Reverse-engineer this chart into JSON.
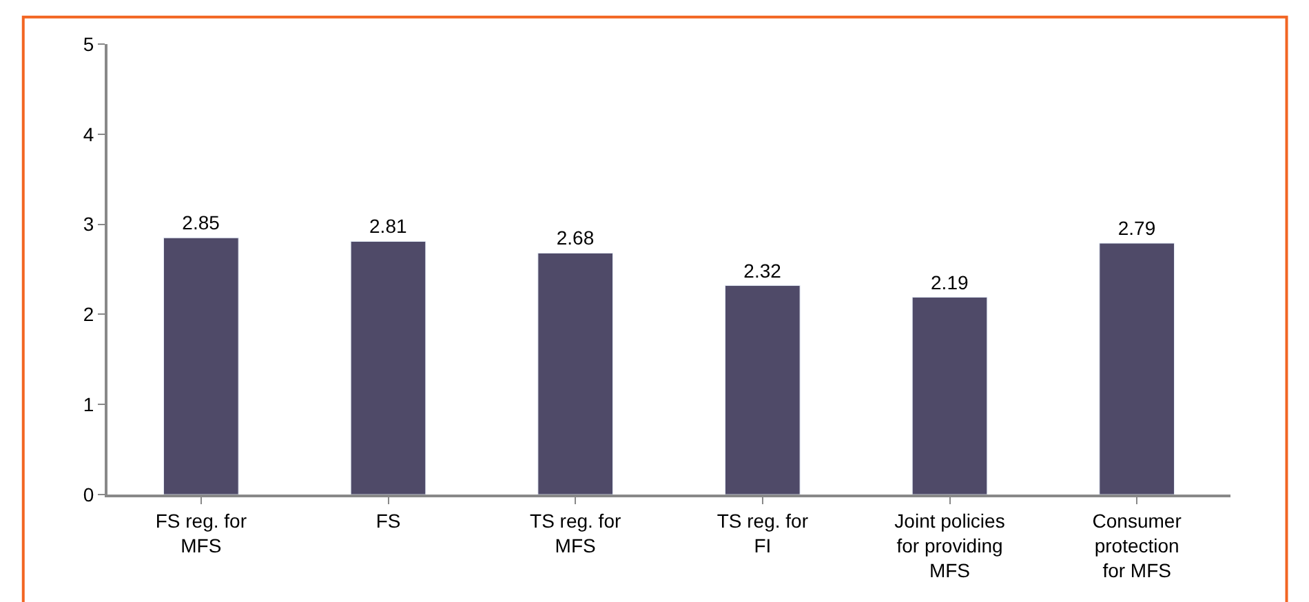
{
  "chart_data": {
    "type": "bar",
    "categories": [
      "FS reg. for\nMFS",
      "FS",
      "TS reg. for\nMFS",
      "TS reg. for\nFI",
      "Joint policies\nfor providing\nMFS",
      "Consumer\nprotection\nfor MFS"
    ],
    "values": [
      2.85,
      2.81,
      2.68,
      2.32,
      2.19,
      2.79
    ],
    "color": "#4f4a68",
    "ylim": [
      0,
      5
    ],
    "yticks": [
      0,
      1,
      2,
      3,
      4,
      5
    ],
    "data_labels": true
  }
}
